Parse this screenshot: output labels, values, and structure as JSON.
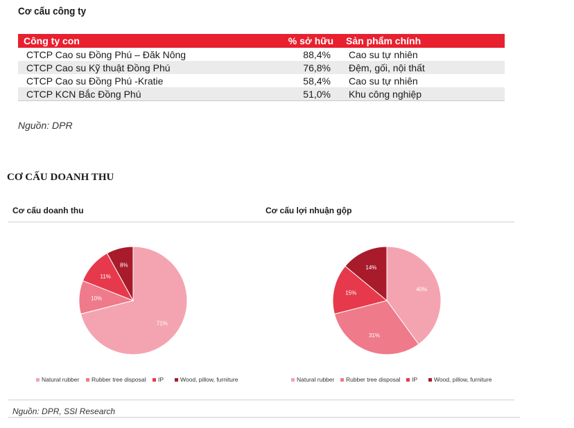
{
  "company_section": {
    "title": "Cơ cấu công ty",
    "headers": [
      "Công ty con",
      "% sở hữu",
      "Sản phẩm chính"
    ],
    "rows": [
      [
        "CTCP Cao su Đồng Phú – Đăk Nông",
        "88,4%",
        "Cao su tự nhiên"
      ],
      [
        "CTCP Cao su Kỹ thuật Đồng Phú",
        "76,8%",
        "Đệm, gối, nội thất"
      ],
      [
        "CTCP Cao su Đồng Phú -Kratie",
        "58,4%",
        "Cao su tự nhiên"
      ],
      [
        "CTCP KCN Bắc Đồng Phú",
        "51,0%",
        "Khu công nghiệp"
      ]
    ],
    "source": "Nguồn: DPR"
  },
  "revenue_section": {
    "title": "CƠ CẤU DOANH THU",
    "source": "Nguồn: DPR, SSI Research"
  },
  "colors": {
    "natural_rubber": "#f4a4b0",
    "rubber_tree_disposal": "#ee7a8a",
    "ip": "#e63a4c",
    "wood": "#a81b2b",
    "header_red": "#e8202f"
  },
  "chart_data": [
    {
      "type": "pie",
      "title": "Cơ cấu doanh thu",
      "categories": [
        "Natural rubber",
        "Rubber tree disposal",
        "IP",
        "Wood, pillow, furniture"
      ],
      "values": [
        71,
        10,
        11,
        8
      ],
      "labels": [
        "71%",
        "10%",
        "11%",
        "8%"
      ],
      "legend": "bottom"
    },
    {
      "type": "pie",
      "title": "Cơ cấu lợi nhuận gộp",
      "categories": [
        "Natural rubber",
        "Rubber tree disposal",
        "IP",
        "Wood, pillow, furniture"
      ],
      "values": [
        40,
        31,
        15,
        14
      ],
      "labels": [
        "40%",
        "31%",
        "15%",
        "14%"
      ],
      "legend": "bottom"
    }
  ]
}
